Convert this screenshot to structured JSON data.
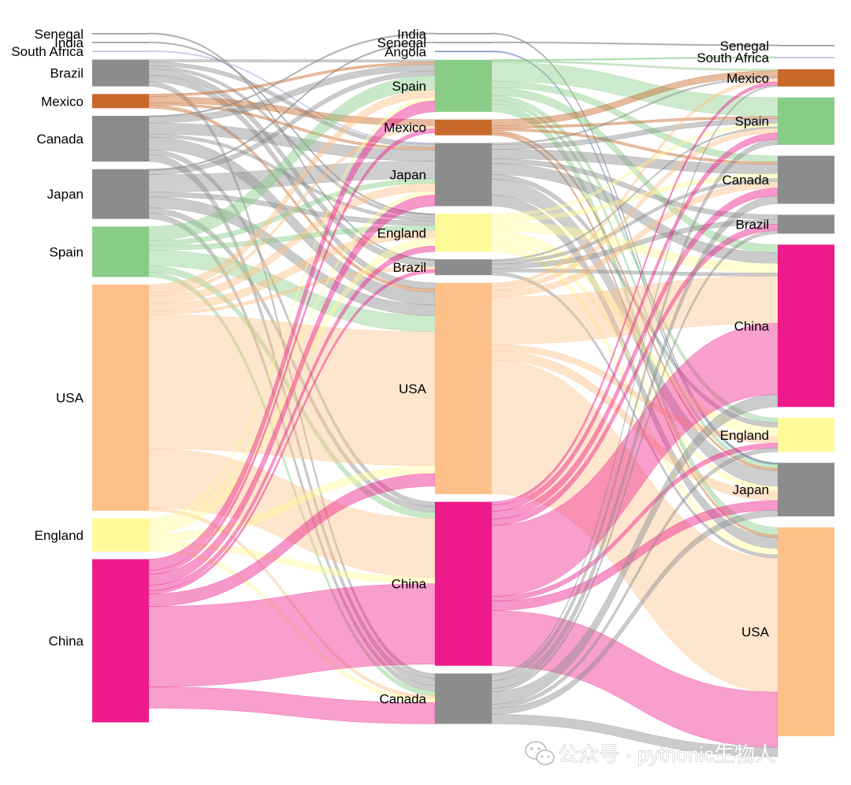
{
  "colors": {
    "Senegal": "#8c8c8c",
    "India": "#8c8c8c",
    "South Africa": "#b9b9e6",
    "Angola": "#6a8fc0",
    "Brazil": "#8c8c8c",
    "Mexico": "#c8692c",
    "Canada": "#8c8c8c",
    "Japan": "#8c8c8c",
    "Spain": "#88cc88",
    "USA": "#fdc088",
    "England": "#fefa9a",
    "China": "#ee1a8a"
  },
  "columns": [
    {
      "id": "c0",
      "nodes": [
        {
          "name": "Senegal",
          "label": "Senegal",
          "value": 1
        },
        {
          "name": "India",
          "label": "India",
          "value": 1
        },
        {
          "name": "South Africa",
          "label": "South Africa",
          "value": 1
        },
        {
          "name": "Brazil",
          "label": "Brazil",
          "value": 34
        },
        {
          "name": "Mexico",
          "label": "Mexico",
          "value": 18
        },
        {
          "name": "Canada",
          "label": "Canada",
          "value": 58
        },
        {
          "name": "Japan",
          "label": "Japan",
          "value": 63
        },
        {
          "name": "Spain",
          "label": "Spain",
          "value": 64
        },
        {
          "name": "USA",
          "label": "USA",
          "value": 287
        },
        {
          "name": "England",
          "label": "England",
          "value": 42
        },
        {
          "name": "China",
          "label": "China",
          "value": 207
        }
      ]
    },
    {
      "id": "c1",
      "nodes": [
        {
          "name": "India",
          "label": "India",
          "value": 1
        },
        {
          "name": "Senegal",
          "label": "Senegal",
          "value": 1
        },
        {
          "name": "Angola",
          "label": "Angola",
          "value": 1
        },
        {
          "name": "Spain",
          "label": "Spain",
          "value": 66
        },
        {
          "name": "Mexico",
          "label": "Mexico",
          "value": 20
        },
        {
          "name": "Japan",
          "label": "Japan",
          "value": 80
        },
        {
          "name": "England",
          "label": "England",
          "value": 48
        },
        {
          "name": "Brazil",
          "label": "Brazil",
          "value": 20
        },
        {
          "name": "USA",
          "label": "USA",
          "value": 268
        },
        {
          "name": "China",
          "label": "China",
          "value": 208
        },
        {
          "name": "Canada",
          "label": "Canada",
          "value": 64
        }
      ]
    },
    {
      "id": "c2",
      "nodes": [
        {
          "name": "Senegal",
          "label": "Senegal",
          "value": 1
        },
        {
          "name": "South Africa",
          "label": "South Africa",
          "value": 1
        },
        {
          "name": "Mexico",
          "label": "Mexico",
          "value": 22
        },
        {
          "name": "Spain",
          "label": "Spain",
          "value": 60
        },
        {
          "name": "Canada",
          "label": "Canada",
          "value": 61
        },
        {
          "name": "Brazil",
          "label": "Brazil",
          "value": 24
        },
        {
          "name": "China",
          "label": "China",
          "value": 206
        },
        {
          "name": "England",
          "label": "England",
          "value": 43
        },
        {
          "name": "Japan",
          "label": "Japan",
          "value": 68
        },
        {
          "name": "USA",
          "label": "USA",
          "value": 265
        }
      ]
    }
  ],
  "links": [
    {
      "col": 0,
      "source": "Senegal",
      "target": "Brazil",
      "value": 1
    },
    {
      "col": 0,
      "source": "India",
      "target": "England",
      "value": 1
    },
    {
      "col": 0,
      "source": "South Africa",
      "target": "Japan",
      "value": 1
    },
    {
      "col": 0,
      "source": "Brazil",
      "target": "Spain",
      "value": 3
    },
    {
      "col": 0,
      "source": "Brazil",
      "target": "Japan",
      "value": 5
    },
    {
      "col": 0,
      "source": "Brazil",
      "target": "England",
      "value": 4
    },
    {
      "col": 0,
      "source": "Brazil",
      "target": "Brazil",
      "value": 8
    },
    {
      "col": 0,
      "source": "Brazil",
      "target": "USA",
      "value": 8
    },
    {
      "col": 0,
      "source": "Brazil",
      "target": "Canada",
      "value": 6
    },
    {
      "col": 0,
      "source": "Mexico",
      "target": "Spain",
      "value": 3
    },
    {
      "col": 0,
      "source": "Mexico",
      "target": "Mexico",
      "value": 8
    },
    {
      "col": 0,
      "source": "Mexico",
      "target": "Japan",
      "value": 3
    },
    {
      "col": 0,
      "source": "Mexico",
      "target": "USA",
      "value": 4
    },
    {
      "col": 0,
      "source": "Canada",
      "target": "India",
      "value": 1
    },
    {
      "col": 0,
      "source": "Canada",
      "target": "Spain",
      "value": 8
    },
    {
      "col": 0,
      "source": "Canada",
      "target": "Japan",
      "value": 14
    },
    {
      "col": 0,
      "source": "Canada",
      "target": "England",
      "value": 4
    },
    {
      "col": 0,
      "source": "Canada",
      "target": "USA",
      "value": 16
    },
    {
      "col": 0,
      "source": "Canada",
      "target": "China",
      "value": 6
    },
    {
      "col": 0,
      "source": "Canada",
      "target": "Canada",
      "value": 9
    },
    {
      "col": 0,
      "source": "Japan",
      "target": "Senegal",
      "value": 1
    },
    {
      "col": 0,
      "source": "Japan",
      "target": "Spain",
      "value": 6
    },
    {
      "col": 0,
      "source": "Japan",
      "target": "Japan",
      "value": 22
    },
    {
      "col": 0,
      "source": "Japan",
      "target": "England",
      "value": 6
    },
    {
      "col": 0,
      "source": "Japan",
      "target": "USA",
      "value": 14
    },
    {
      "col": 0,
      "source": "Japan",
      "target": "China",
      "value": 7
    },
    {
      "col": 0,
      "source": "Japan",
      "target": "Canada",
      "value": 7
    },
    {
      "col": 0,
      "source": "Spain",
      "target": "Spain",
      "value": 18
    },
    {
      "col": 0,
      "source": "Spain",
      "target": "Japan",
      "value": 6
    },
    {
      "col": 0,
      "source": "Spain",
      "target": "England",
      "value": 6
    },
    {
      "col": 0,
      "source": "Spain",
      "target": "USA",
      "value": 20
    },
    {
      "col": 0,
      "source": "Spain",
      "target": "China",
      "value": 8
    },
    {
      "col": 0,
      "source": "Spain",
      "target": "Canada",
      "value": 6
    },
    {
      "col": 0,
      "source": "USA",
      "target": "Spain",
      "value": 10
    },
    {
      "col": 0,
      "source": "USA",
      "target": "Mexico",
      "value": 4
    },
    {
      "col": 0,
      "source": "USA",
      "target": "Japan",
      "value": 10
    },
    {
      "col": 0,
      "source": "USA",
      "target": "England",
      "value": 10
    },
    {
      "col": 0,
      "source": "USA",
      "target": "Brazil",
      "value": 4
    },
    {
      "col": 0,
      "source": "USA",
      "target": "USA",
      "value": 170
    },
    {
      "col": 0,
      "source": "USA",
      "target": "China",
      "value": 75
    },
    {
      "col": 0,
      "source": "USA",
      "target": "Canada",
      "value": 4
    },
    {
      "col": 0,
      "source": "England",
      "target": "Spain",
      "value": 4
    },
    {
      "col": 0,
      "source": "England",
      "target": "Japan",
      "value": 5
    },
    {
      "col": 0,
      "source": "England",
      "target": "England",
      "value": 10
    },
    {
      "col": 0,
      "source": "England",
      "target": "USA",
      "value": 10
    },
    {
      "col": 0,
      "source": "England",
      "target": "China",
      "value": 8
    },
    {
      "col": 0,
      "source": "England",
      "target": "Canada",
      "value": 5
    },
    {
      "col": 0,
      "source": "China",
      "target": "Spain",
      "value": 14
    },
    {
      "col": 0,
      "source": "China",
      "target": "Mexico",
      "value": 5
    },
    {
      "col": 0,
      "source": "China",
      "target": "Japan",
      "value": 14
    },
    {
      "col": 0,
      "source": "China",
      "target": "England",
      "value": 7
    },
    {
      "col": 0,
      "source": "China",
      "target": "Brazil",
      "value": 4
    },
    {
      "col": 0,
      "source": "China",
      "target": "USA",
      "value": 16
    },
    {
      "col": 0,
      "source": "China",
      "target": "China",
      "value": 102
    },
    {
      "col": 0,
      "source": "China",
      "target": "Canada",
      "value": 27
    },
    {
      "col": 1,
      "source": "India",
      "target": "Japan",
      "value": 1
    },
    {
      "col": 1,
      "source": "Senegal",
      "target": "Senegal",
      "value": 1
    },
    {
      "col": 1,
      "source": "Angola",
      "target": "Japan",
      "value": 1
    },
    {
      "col": 1,
      "source": "Spain",
      "target": "South Africa",
      "value": 1
    },
    {
      "col": 1,
      "source": "Spain",
      "target": "Mexico",
      "value": 2
    },
    {
      "col": 1,
      "source": "Spain",
      "target": "Spain",
      "value": 24
    },
    {
      "col": 1,
      "source": "Spain",
      "target": "Canada",
      "value": 8
    },
    {
      "col": 1,
      "source": "Spain",
      "target": "China",
      "value": 10
    },
    {
      "col": 1,
      "source": "Spain",
      "target": "England",
      "value": 6
    },
    {
      "col": 1,
      "source": "Spain",
      "target": "Japan",
      "value": 5
    },
    {
      "col": 1,
      "source": "Spain",
      "target": "USA",
      "value": 10
    },
    {
      "col": 1,
      "source": "Mexico",
      "target": "Mexico",
      "value": 8
    },
    {
      "col": 1,
      "source": "Mexico",
      "target": "Spain",
      "value": 3
    },
    {
      "col": 1,
      "source": "Mexico",
      "target": "Canada",
      "value": 3
    },
    {
      "col": 1,
      "source": "Mexico",
      "target": "Japan",
      "value": 3
    },
    {
      "col": 1,
      "source": "Mexico",
      "target": "USA",
      "value": 3
    },
    {
      "col": 1,
      "source": "Japan",
      "target": "Mexico",
      "value": 2
    },
    {
      "col": 1,
      "source": "Japan",
      "target": "Spain",
      "value": 6
    },
    {
      "col": 1,
      "source": "Japan",
      "target": "Canada",
      "value": 12
    },
    {
      "col": 1,
      "source": "Japan",
      "target": "Brazil",
      "value": 6
    },
    {
      "col": 1,
      "source": "Japan",
      "target": "China",
      "value": 14
    },
    {
      "col": 1,
      "source": "Japan",
      "target": "England",
      "value": 6
    },
    {
      "col": 1,
      "source": "Japan",
      "target": "Japan",
      "value": 20
    },
    {
      "col": 1,
      "source": "Japan",
      "target": "USA",
      "value": 14
    },
    {
      "col": 1,
      "source": "England",
      "target": "Spain",
      "value": 4
    },
    {
      "col": 1,
      "source": "England",
      "target": "Canada",
      "value": 6
    },
    {
      "col": 1,
      "source": "England",
      "target": "China",
      "value": 12
    },
    {
      "col": 1,
      "source": "England",
      "target": "England",
      "value": 12
    },
    {
      "col": 1,
      "source": "England",
      "target": "Japan",
      "value": 6
    },
    {
      "col": 1,
      "source": "England",
      "target": "USA",
      "value": 8
    },
    {
      "col": 1,
      "source": "Brazil",
      "target": "Spain",
      "value": 2
    },
    {
      "col": 1,
      "source": "Brazil",
      "target": "Canada",
      "value": 4
    },
    {
      "col": 1,
      "source": "Brazil",
      "target": "Brazil",
      "value": 6
    },
    {
      "col": 1,
      "source": "Brazil",
      "target": "China",
      "value": 4
    },
    {
      "col": 1,
      "source": "Brazil",
      "target": "USA",
      "value": 4
    },
    {
      "col": 1,
      "source": "USA",
      "target": "Mexico",
      "value": 4
    },
    {
      "col": 1,
      "source": "USA",
      "target": "Spain",
      "value": 6
    },
    {
      "col": 1,
      "source": "USA",
      "target": "Canada",
      "value": 8
    },
    {
      "col": 1,
      "source": "USA",
      "target": "China",
      "value": 60
    },
    {
      "col": 1,
      "source": "USA",
      "target": "England",
      "value": 8
    },
    {
      "col": 1,
      "source": "USA",
      "target": "Japan",
      "value": 12
    },
    {
      "col": 1,
      "source": "USA",
      "target": "USA",
      "value": 170
    },
    {
      "col": 1,
      "source": "China",
      "target": "Mexico",
      "value": 4
    },
    {
      "col": 1,
      "source": "China",
      "target": "Spain",
      "value": 8
    },
    {
      "col": 1,
      "source": "China",
      "target": "Canada",
      "value": 10
    },
    {
      "col": 1,
      "source": "China",
      "target": "Brazil",
      "value": 8
    },
    {
      "col": 1,
      "source": "China",
      "target": "China",
      "value": 90
    },
    {
      "col": 1,
      "source": "China",
      "target": "England",
      "value": 6
    },
    {
      "col": 1,
      "source": "China",
      "target": "Japan",
      "value": 12
    },
    {
      "col": 1,
      "source": "China",
      "target": "USA",
      "value": 70
    },
    {
      "col": 1,
      "source": "Canada",
      "target": "Mexico",
      "value": 2
    },
    {
      "col": 1,
      "source": "Canada",
      "target": "Spain",
      "value": 7
    },
    {
      "col": 1,
      "source": "Canada",
      "target": "Canada",
      "value": 10
    },
    {
      "col": 1,
      "source": "Canada",
      "target": "Brazil",
      "value": 4
    },
    {
      "col": 1,
      "source": "Canada",
      "target": "China",
      "value": 16
    },
    {
      "col": 1,
      "source": "Canada",
      "target": "England",
      "value": 5
    },
    {
      "col": 1,
      "source": "Canada",
      "target": "Japan",
      "value": 8
    },
    {
      "col": 1,
      "source": "Canada",
      "target": "USA",
      "value": 12
    }
  ],
  "watermark": {
    "icon": "wechat-icon",
    "text": "公众号 · pythonic生物人"
  }
}
